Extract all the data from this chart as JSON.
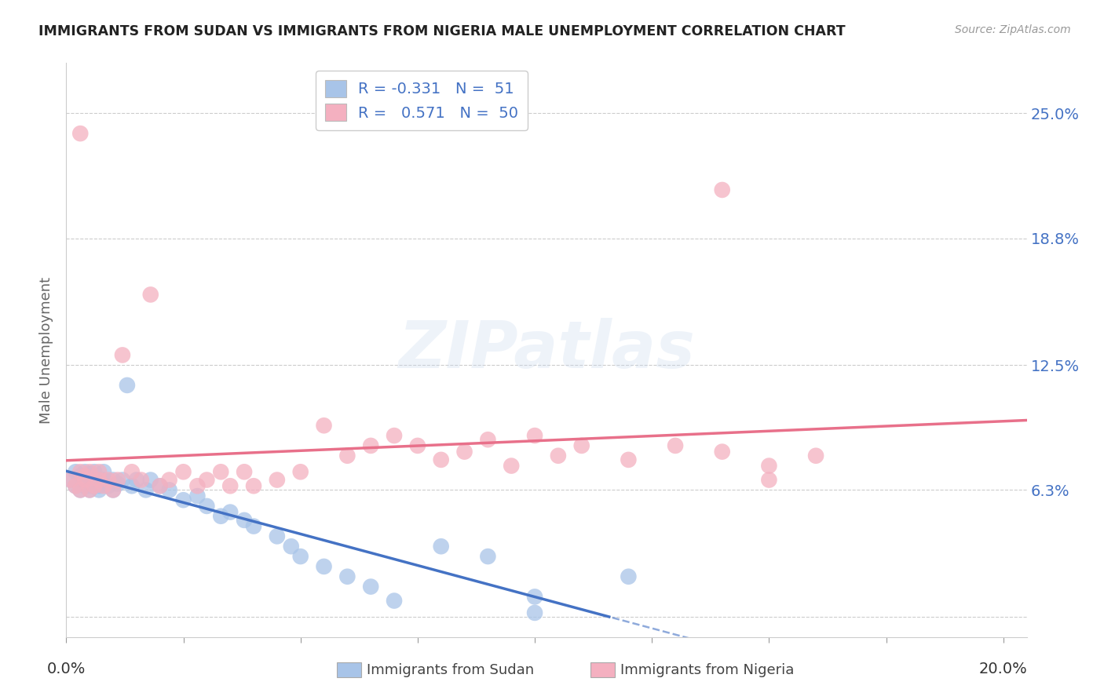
{
  "title": "IMMIGRANTS FROM SUDAN VS IMMIGRANTS FROM NIGERIA MALE UNEMPLOYMENT CORRELATION CHART",
  "source": "Source: ZipAtlas.com",
  "ylabel": "Male Unemployment",
  "ytick_values": [
    0.0,
    0.063,
    0.125,
    0.188,
    0.25
  ],
  "ytick_labels": [
    "",
    "6.3%",
    "12.5%",
    "18.8%",
    "25.0%"
  ],
  "xmin": 0.0,
  "xmax": 0.205,
  "ymin": -0.01,
  "ymax": 0.275,
  "sudan_r": -0.331,
  "sudan_n": 51,
  "nigeria_r": 0.571,
  "nigeria_n": 50,
  "sudan_color": "#a8c4e8",
  "nigeria_color": "#f4b0c0",
  "sudan_line_color": "#4472c4",
  "nigeria_line_color": "#e8708a",
  "watermark_text": "ZIPatlas",
  "legend_r1": "R = -0.331",
  "legend_n1": "N =  51",
  "legend_r2": "R =  0.571",
  "legend_n2": "N =  50",
  "sudan_seed": 42,
  "nigeria_seed": 99,
  "sudan_x": [
    0.001,
    0.002,
    0.002,
    0.003,
    0.003,
    0.003,
    0.004,
    0.004,
    0.004,
    0.005,
    0.005,
    0.005,
    0.005,
    0.006,
    0.006,
    0.007,
    0.007,
    0.007,
    0.008,
    0.008,
    0.009,
    0.01,
    0.01,
    0.011,
    0.012,
    0.013,
    0.014,
    0.015,
    0.017,
    0.018,
    0.02,
    0.022,
    0.025,
    0.028,
    0.03,
    0.033,
    0.035,
    0.038,
    0.04,
    0.045,
    0.048,
    0.05,
    0.055,
    0.06,
    0.065,
    0.07,
    0.08,
    0.09,
    0.1,
    0.12,
    0.1
  ],
  "sudan_y": [
    0.068,
    0.065,
    0.072,
    0.063,
    0.07,
    0.068,
    0.072,
    0.065,
    0.07,
    0.068,
    0.063,
    0.071,
    0.065,
    0.068,
    0.072,
    0.065,
    0.068,
    0.063,
    0.068,
    0.072,
    0.065,
    0.068,
    0.063,
    0.066,
    0.068,
    0.115,
    0.065,
    0.068,
    0.063,
    0.068,
    0.065,
    0.063,
    0.058,
    0.06,
    0.055,
    0.05,
    0.052,
    0.048,
    0.045,
    0.04,
    0.035,
    0.03,
    0.025,
    0.02,
    0.015,
    0.008,
    0.035,
    0.03,
    0.01,
    0.02,
    0.002
  ],
  "nigeria_x": [
    0.001,
    0.002,
    0.003,
    0.003,
    0.004,
    0.004,
    0.005,
    0.005,
    0.006,
    0.007,
    0.007,
    0.008,
    0.009,
    0.01,
    0.011,
    0.012,
    0.014,
    0.016,
    0.018,
    0.02,
    0.022,
    0.025,
    0.028,
    0.03,
    0.033,
    0.035,
    0.038,
    0.04,
    0.045,
    0.05,
    0.055,
    0.06,
    0.065,
    0.07,
    0.075,
    0.08,
    0.085,
    0.09,
    0.095,
    0.1,
    0.105,
    0.11,
    0.12,
    0.13,
    0.14,
    0.15,
    0.16,
    0.003,
    0.15,
    0.14
  ],
  "nigeria_y": [
    0.068,
    0.065,
    0.063,
    0.072,
    0.068,
    0.07,
    0.063,
    0.072,
    0.065,
    0.068,
    0.072,
    0.065,
    0.068,
    0.063,
    0.068,
    0.13,
    0.072,
    0.068,
    0.16,
    0.065,
    0.068,
    0.072,
    0.065,
    0.068,
    0.072,
    0.065,
    0.072,
    0.065,
    0.068,
    0.072,
    0.095,
    0.08,
    0.085,
    0.09,
    0.085,
    0.078,
    0.082,
    0.088,
    0.075,
    0.09,
    0.08,
    0.085,
    0.078,
    0.085,
    0.082,
    0.075,
    0.08,
    0.24,
    0.068,
    0.212
  ]
}
